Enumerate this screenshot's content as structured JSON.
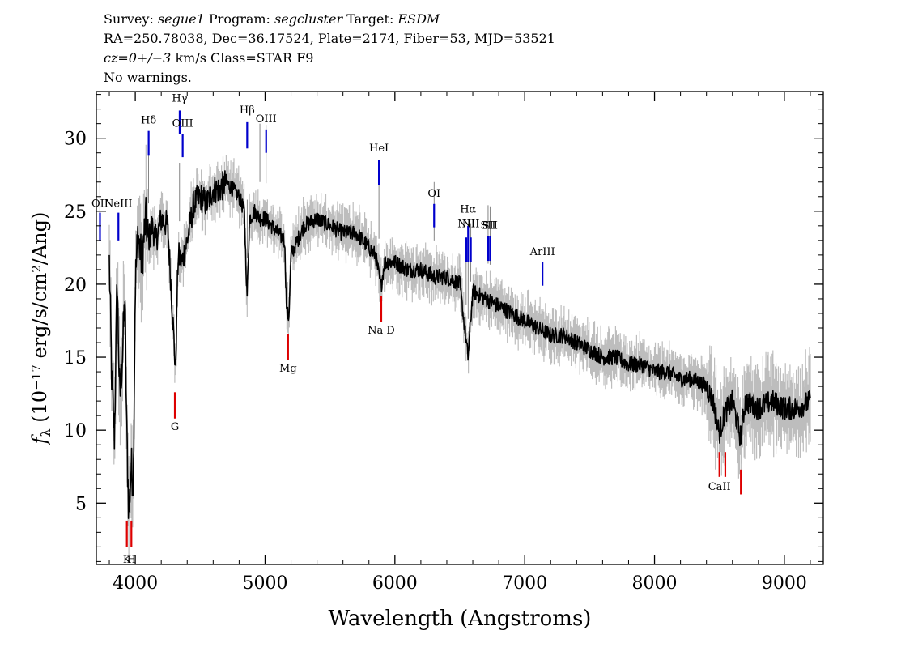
{
  "header": {
    "survey_label": "Survey: ",
    "survey_value": "segue1",
    "program_label": " Program: ",
    "program_value": "segcluster",
    "target_label": " Target: ",
    "target_value": "ESDM",
    "line2": "RA=250.78038, Dec=36.17524, Plate=2174, Fiber=53, MJD=53521",
    "cz_value": "cz=0+/−3",
    "cz_rest": " km/s Class=STAR F9",
    "line4": "No warnings."
  },
  "colors": {
    "spectrum": "#000000",
    "error": "#bdbdbd",
    "emission": "#0000cc",
    "absorption": "#dd0000",
    "redshift_mark": "#000000"
  },
  "chart_data": {
    "type": "line",
    "title": "",
    "xlabel": "Wavelength (Angstroms)",
    "ylabel": "f_λ (10^-17 erg/s/cm^2/Ang)",
    "xlim": [
      3700,
      9300
    ],
    "ylim": [
      0.8,
      33.2
    ],
    "x_ticks": [
      4000,
      5000,
      6000,
      7000,
      8000,
      9000
    ],
    "y_ticks": [
      5,
      10,
      15,
      20,
      25,
      30
    ],
    "grid": false,
    "series": [
      {
        "name": "",
        "x": [
          3800,
          3820,
          3840,
          3860,
          3880,
          3900,
          3920,
          3935,
          3950,
          3968,
          3985,
          4000,
          4020,
          4050,
          4080,
          4101,
          4130,
          4160,
          4200,
          4250,
          4290,
          4310,
          4330,
          4360,
          4400,
          4450,
          4500,
          4550,
          4600,
          4650,
          4700,
          4750,
          4800,
          4840,
          4861,
          4880,
          4920,
          4960,
          5000,
          5050,
          5100,
          5150,
          5167,
          5183,
          5200,
          5250,
          5300,
          5400,
          5500,
          5600,
          5700,
          5750,
          5800,
          5850,
          5893,
          5920,
          6000,
          6100,
          6200,
          6300,
          6400,
          6500,
          6563,
          6600,
          6700,
          6800,
          6900,
          7000,
          7100,
          7200,
          7300,
          7400,
          7500,
          7600,
          7700,
          7800,
          7900,
          8000,
          8100,
          8200,
          8300,
          8400,
          8450,
          8498,
          8542,
          8600,
          8662,
          8700,
          8800,
          8900,
          9000,
          9100,
          9200
        ],
        "y": [
          21.5,
          13,
          9.5,
          20.5,
          12,
          15,
          19,
          9.5,
          4.2,
          7.5,
          6.6,
          20,
          23.5,
          21.5,
          24.5,
          23,
          24,
          23,
          24.5,
          24,
          17.5,
          14,
          22,
          21.5,
          23,
          25.5,
          26,
          25.5,
          26.5,
          26.5,
          27,
          26.5,
          26,
          25,
          19,
          24.5,
          25,
          24.5,
          24.5,
          24,
          23.5,
          23,
          18,
          17.8,
          22,
          23,
          24,
          24.5,
          24,
          23.5,
          23.5,
          23,
          22.5,
          22,
          19.8,
          21.5,
          21.5,
          21,
          21,
          20.5,
          20.5,
          20,
          15,
          19.5,
          19,
          18.5,
          18,
          17.5,
          17,
          16.5,
          16.5,
          16,
          15.5,
          15,
          15,
          14.5,
          14.5,
          14,
          14,
          13.5,
          13.5,
          13,
          12,
          9.8,
          11.2,
          12,
          9.5,
          12,
          11.5,
          12,
          11.5,
          11.5,
          12
        ]
      }
    ],
    "redshift_markers": [
      3727,
      4102,
      4341,
      4862,
      4960,
      5008,
      5877,
      6302,
      6549,
      6564,
      6585,
      6718,
      6733
    ],
    "emission_lines": [
      {
        "label": "OII",
        "wavelength": 3728,
        "label_value": 25.3,
        "tick_top": 24.9,
        "tick_bottom": 23.0
      },
      {
        "label": "NeIII",
        "wavelength": 3870,
        "label_value": 25.3,
        "tick_top": 24.9,
        "tick_bottom": 23.0
      },
      {
        "label": "Hδ",
        "wavelength": 4103,
        "label_value": 31.0,
        "tick_top": 30.5,
        "tick_bottom": 28.8
      },
      {
        "label": "Hγ",
        "wavelength": 4342,
        "label_value": 32.5,
        "tick_top": 31.9,
        "tick_bottom": 30.3
      },
      {
        "label": "OIII",
        "wavelength": 4365,
        "label_value": 30.8,
        "tick_top": 30.3,
        "tick_bottom": 28.7
      },
      {
        "label": "Hβ",
        "wavelength": 4862,
        "label_value": 31.7,
        "tick_top": 31.1,
        "tick_bottom": 29.3
      },
      {
        "label": "OIII",
        "wavelength": 5008,
        "label_value": 31.1,
        "tick_top": 30.6,
        "tick_bottom": 29.0
      },
      {
        "label": "HeI",
        "wavelength": 5877,
        "label_value": 29.1,
        "tick_top": 28.5,
        "tick_bottom": 26.8
      },
      {
        "label": "OI",
        "wavelength": 6302,
        "label_value": 26.0,
        "tick_top": 25.5,
        "tick_bottom": 23.9
      },
      {
        "label": "NII",
        "wavelength": 6550,
        "label_value": 23.9,
        "tick_top": 23.2,
        "tick_bottom": 21.5
      },
      {
        "label": "Hα",
        "wavelength": 6564,
        "label_value": 24.9,
        "tick_top": 24.0,
        "tick_bottom": 21.5
      },
      {
        "label": "NII",
        "wavelength": 6585,
        "label_value": 23.9,
        "tick_top": 23.2,
        "tick_bottom": 21.5
      },
      {
        "label": "SII",
        "wavelength": 6718,
        "label_value": 23.8,
        "tick_top": 23.3,
        "tick_bottom": 21.6
      },
      {
        "label": "SII",
        "wavelength": 6733,
        "label_value": 23.8,
        "tick_top": 23.3,
        "tick_bottom": 21.6
      },
      {
        "label": "ArIII",
        "wavelength": 7137,
        "label_value": 22.0,
        "tick_top": 21.5,
        "tick_bottom": 19.9
      }
    ],
    "absorption_lines": [
      {
        "label": "K",
        "wavelength": 3935,
        "tick_top": 3.8,
        "tick_bottom": 2.0,
        "label_value": 0.9
      },
      {
        "label": "H",
        "wavelength": 3970,
        "tick_top": 3.8,
        "tick_bottom": 2.0,
        "label_value": 0.9
      },
      {
        "label": "G",
        "wavelength": 4305,
        "tick_top": 12.6,
        "tick_bottom": 10.8,
        "label_value": 10.0
      },
      {
        "label": "Mg",
        "wavelength": 5177,
        "tick_top": 16.6,
        "tick_bottom": 14.8,
        "label_value": 14.0
      },
      {
        "label": "Na D",
        "wavelength": 5895,
        "tick_top": 19.2,
        "tick_bottom": 17.4,
        "label_value": 16.6
      },
      {
        "label": "CaII",
        "wavelength": 8500,
        "tick_top": 8.5,
        "tick_bottom": 6.8,
        "label_value": 5.9
      },
      {
        "label": "CaII",
        "wavelength": 8545,
        "tick_top": 8.5,
        "tick_bottom": 6.8,
        "label_value": null
      },
      {
        "label": "CaII",
        "wavelength": 8665,
        "tick_top": 7.3,
        "tick_bottom": 5.6,
        "label_value": null
      }
    ]
  }
}
